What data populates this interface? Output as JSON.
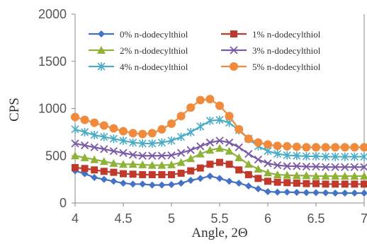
{
  "chart_data": {
    "type": "line",
    "xlabel": "Angle, 2Θ",
    "ylabel": "CPS",
    "xlim": [
      4,
      7
    ],
    "ylim": [
      0,
      2000
    ],
    "xticks": [
      "4",
      "4.5",
      "5",
      "5.5",
      "6",
      "6.5",
      "7"
    ],
    "yticks": [
      "0",
      "500",
      "1000",
      "1500",
      "2000"
    ],
    "grid": false,
    "legend_position": "top",
    "x": [
      4.0,
      4.1,
      4.2,
      4.3,
      4.4,
      4.5,
      4.6,
      4.7,
      4.8,
      4.9,
      5.0,
      5.1,
      5.2,
      5.3,
      5.4,
      5.5,
      5.6,
      5.7,
      5.8,
      5.9,
      6.0,
      6.1,
      6.2,
      6.3,
      6.4,
      6.5,
      6.6,
      6.7,
      6.8,
      6.9,
      7.0
    ],
    "series": [
      {
        "name": "0% n-dodecylthiol",
        "color": "#4472c4",
        "marker": "diamond",
        "values": [
          340,
          310,
          270,
          250,
          230,
          210,
          200,
          200,
          190,
          190,
          195,
          210,
          240,
          260,
          285,
          260,
          230,
          210,
          180,
          150,
          120,
          115,
          115,
          112,
          110,
          110,
          108,
          105,
          105,
          105,
          105
        ]
      },
      {
        "name": "1% n-dodecylthiol",
        "color": "#c0392b",
        "marker": "square",
        "values": [
          375,
          365,
          350,
          335,
          325,
          310,
          305,
          300,
          300,
          300,
          300,
          315,
          340,
          370,
          410,
          430,
          410,
          350,
          300,
          260,
          230,
          220,
          215,
          210,
          205,
          205,
          200,
          200,
          200,
          200,
          200
        ]
      },
      {
        "name": "2% n-dodecylthiol",
        "color": "#8fb339",
        "marker": "triangle",
        "values": [
          500,
          480,
          460,
          440,
          420,
          410,
          410,
          405,
          400,
          400,
          405,
          430,
          470,
          520,
          560,
          580,
          550,
          480,
          410,
          360,
          320,
          300,
          295,
          290,
          290,
          285,
          285,
          285,
          285,
          285,
          285
        ]
      },
      {
        "name": "3% n-dodecylthiol",
        "color": "#7a5aa6",
        "marker": "x",
        "values": [
          630,
          610,
          590,
          570,
          550,
          530,
          510,
          500,
          500,
          500,
          505,
          530,
          560,
          600,
          640,
          660,
          640,
          590,
          520,
          460,
          420,
          400,
          390,
          390,
          385,
          385,
          380,
          380,
          380,
          380,
          380
        ]
      },
      {
        "name": "4% n-dodecylthiol",
        "color": "#4bacc6",
        "marker": "star",
        "values": [
          780,
          750,
          720,
          700,
          680,
          660,
          640,
          630,
          630,
          640,
          660,
          700,
          750,
          810,
          870,
          880,
          850,
          770,
          680,
          600,
          550,
          520,
          505,
          500,
          495,
          495,
          490,
          490,
          490,
          490,
          490
        ]
      },
      {
        "name": "5% n-dodecylthiol",
        "color": "#f08a3c",
        "marker": "circle",
        "values": [
          910,
          880,
          850,
          820,
          790,
          760,
          740,
          730,
          740,
          780,
          840,
          920,
          1010,
          1090,
          1100,
          1030,
          920,
          780,
          680,
          640,
          620,
          605,
          600,
          595,
          590,
          590,
          590,
          590,
          590,
          590,
          590
        ]
      }
    ]
  }
}
